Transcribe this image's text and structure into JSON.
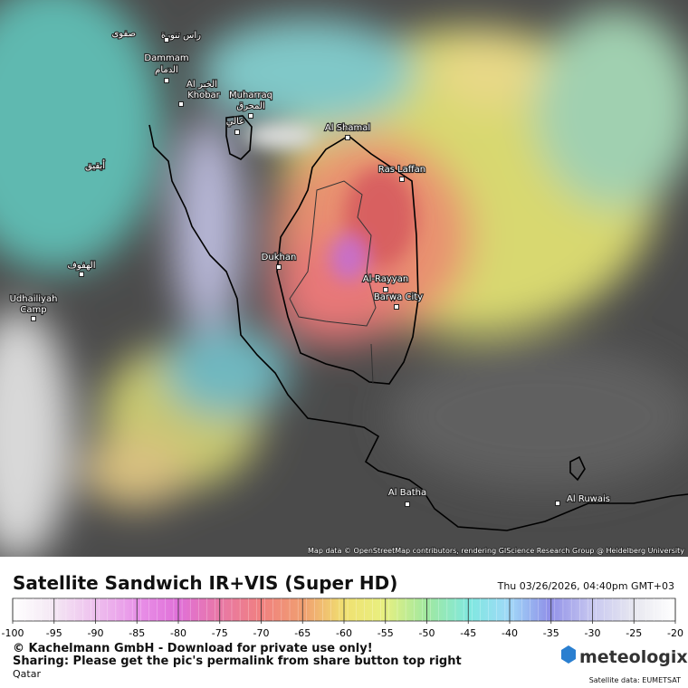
{
  "map": {
    "labels": [
      "صفوى",
      "راس تنورة",
      "Dammam",
      "الدمام",
      "الخبر",
      "Al",
      "Khobar",
      "Muharraq",
      "المحرق",
      "عالي",
      "Al Shamal",
      "Ras Laffan",
      "أبقيق",
      "Dukhan",
      "الهفوف",
      "Udhailiyah",
      "Camp",
      "Al-Rayyan",
      "Barwa City",
      "Al Batha",
      "Al Ruwais"
    ],
    "attribution": "Map data © OpenStreetMap contributors, rendering GIScience Research Group @ Heidelberg University"
  },
  "legend": {
    "title": "Satellite Sandwich IR+VIS (Super HD)",
    "timestamp": "Thu 03/26/2026, 04:40pm GMT+03",
    "scale_ticks": [
      -100,
      -95,
      -90,
      -85,
      -80,
      -75,
      -70,
      -65,
      -60,
      -55,
      -50,
      -45,
      -40,
      -35,
      -30,
      -25,
      -20
    ]
  },
  "footer": {
    "copyright": "© Kachelmann GmbH - Download for private use only!",
    "sharing": "Sharing: Please get the pic's permalink from share button top right",
    "region": "Qatar",
    "logo": "meteologix",
    "credit": "Satellite data: EUMETSAT"
  }
}
